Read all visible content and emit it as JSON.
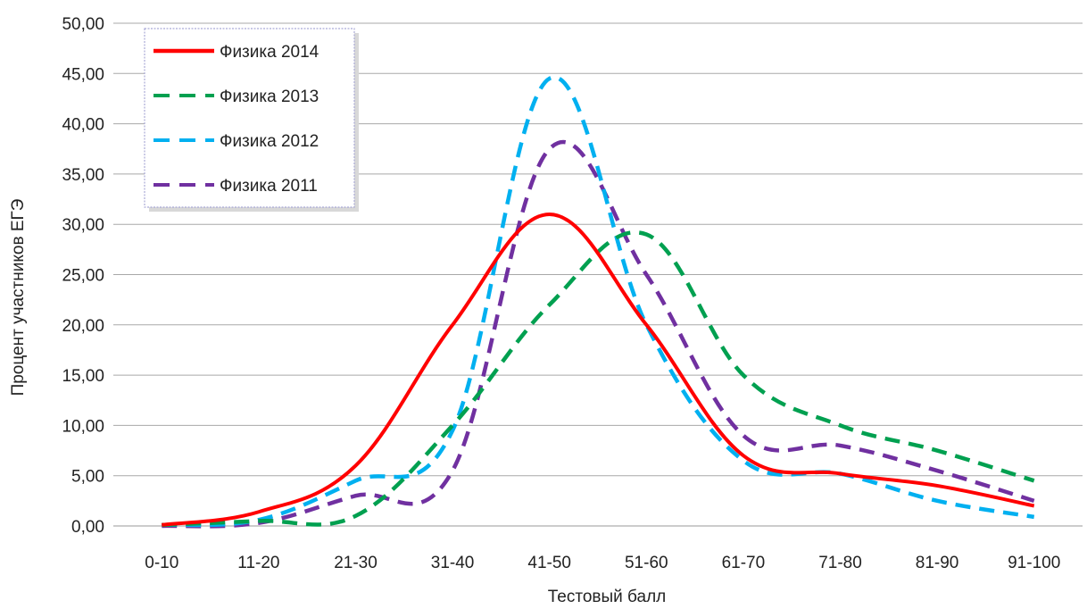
{
  "chart_data": {
    "type": "line",
    "title": "",
    "xlabel": "Тестовый балл",
    "ylabel": "Процент участников ЕГЭ",
    "ylim": [
      0,
      50
    ],
    "y_ticks": [
      "0,00",
      "5,00",
      "10,00",
      "15,00",
      "20,00",
      "25,00",
      "30,00",
      "35,00",
      "40,00",
      "45,00",
      "50,00"
    ],
    "grid": "horizontal",
    "legend_position": "top-left",
    "categories": [
      "0-10",
      "11-20",
      "21-30",
      "31-40",
      "41-50",
      "51-60",
      "61-70",
      "71-80",
      "81-90",
      "91-100"
    ],
    "series": [
      {
        "name": "Физика 2014",
        "color": "#ff0000",
        "style": "solid",
        "values": [
          0.1,
          1.4,
          6.0,
          20.0,
          31.0,
          20.0,
          7.0,
          5.2,
          4.0,
          2.0
        ]
      },
      {
        "name": "Физика 2013",
        "color": "#00a050",
        "style": "dashed",
        "values": [
          0.1,
          0.5,
          1.0,
          10.0,
          22.0,
          29.0,
          15.0,
          10.0,
          7.5,
          4.5
        ]
      },
      {
        "name": "Физика 2012",
        "color": "#00b0f0",
        "style": "dashed",
        "values": [
          0.1,
          0.6,
          4.5,
          9.5,
          44.5,
          20.0,
          6.5,
          5.2,
          2.5,
          0.9
        ]
      },
      {
        "name": "Физика 2011",
        "color": "#7030a0",
        "style": "dashed",
        "values": [
          0.0,
          0.3,
          3.0,
          5.5,
          37.5,
          25.0,
          9.0,
          8.0,
          5.5,
          2.5
        ]
      }
    ]
  }
}
